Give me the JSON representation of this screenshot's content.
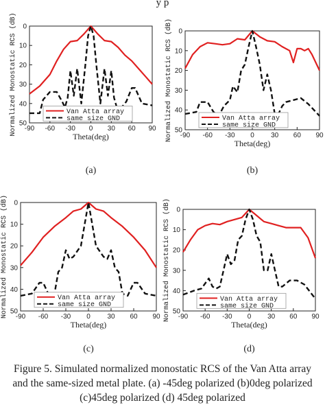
{
  "header_fragment": "y p",
  "caption_lines": [
    "Figure 5. Simulated normalized monostatic RCS of the Van Atta array",
    "and the same-sized metal plate. (a) -45deg polarized (b)0deg polarized",
    "(c)45deg polarized (d) 45deg polarized"
  ],
  "colors": {
    "van_atta": "#e02020",
    "gnd": "#111111"
  },
  "chart_data": [
    {
      "type": "line",
      "sublabel": "(a)",
      "xlabel": "Theta(deg)",
      "ylabel": "Normalized Monostatic RCS (dB)",
      "xlim": [
        -90,
        90
      ],
      "ylim": [
        0,
        50
      ],
      "inverted_y": true,
      "xticks": [
        "-90",
        "-60",
        "-30",
        "0",
        "30",
        "60",
        "90"
      ],
      "yticks": [
        "0",
        "10",
        "20",
        "30",
        "40",
        "50"
      ],
      "legend_position": "bottom-left",
      "series": [
        {
          "name": "Van Atta array",
          "style": "solid",
          "x": [
            -90,
            -75,
            -60,
            -50,
            -40,
            -30,
            -20,
            -10,
            0,
            10,
            20,
            30,
            40,
            50,
            60,
            70,
            80,
            90
          ],
          "y": [
            35,
            31,
            25,
            18,
            12,
            8,
            7.5,
            4,
            0,
            4,
            7.5,
            8,
            11,
            15,
            18,
            22,
            26,
            30
          ]
        },
        {
          "name": "same size GND",
          "style": "dashed",
          "x": [
            -90,
            -75,
            -70,
            -60,
            -50,
            -42,
            -38,
            -34,
            -30,
            -25,
            -20,
            -14,
            -8,
            -4,
            0,
            4,
            8,
            14,
            20,
            25,
            30,
            34,
            38,
            45,
            52,
            60,
            65,
            75,
            90
          ],
          "y": [
            45,
            45,
            38,
            34,
            34,
            39,
            42,
            37,
            23,
            36,
            22,
            40,
            20,
            5,
            0,
            5,
            20,
            40,
            22,
            36,
            23,
            37,
            42,
            42,
            39,
            32,
            32,
            40,
            41
          ]
        }
      ]
    },
    {
      "type": "line",
      "sublabel": "(b)",
      "xlabel": "Theta(deg)",
      "ylabel": "Normalized Monostatic RCS (dB)",
      "xlim": [
        -90,
        90
      ],
      "ylim": [
        0,
        50
      ],
      "inverted_y": true,
      "xticks": [
        "-90",
        "-60",
        "-30",
        "0",
        "30",
        "60",
        "90"
      ],
      "yticks": [
        "0",
        "10",
        "20",
        "30",
        "40",
        "50"
      ],
      "legend_position": "bottom-left",
      "series": [
        {
          "name": "Van Atta array",
          "style": "solid",
          "x": [
            -90,
            -80,
            -70,
            -60,
            -50,
            -40,
            -30,
            -20,
            -10,
            0,
            10,
            20,
            30,
            40,
            50,
            55,
            60,
            65,
            70,
            75,
            80,
            90
          ],
          "y": [
            19,
            12,
            8,
            6,
            6.5,
            7,
            6.5,
            4,
            4.5,
            0,
            3,
            5,
            5.5,
            8,
            10,
            16,
            9,
            9,
            10,
            9,
            12,
            20
          ]
        },
        {
          "name": "same size GND",
          "style": "dashed",
          "x": [
            -90,
            -75,
            -70,
            -60,
            -52,
            -45,
            -38,
            -30,
            -26,
            -20,
            -15,
            -10,
            -5,
            0,
            5,
            10,
            15,
            20,
            25,
            30,
            35,
            40,
            45,
            55,
            65,
            75,
            90
          ],
          "y": [
            42,
            41,
            36,
            36,
            41,
            43,
            38,
            35,
            28,
            31,
            20,
            17,
            8,
            0,
            8,
            17,
            30,
            22,
            30,
            42,
            42,
            38,
            36,
            35,
            34,
            37,
            43
          ]
        }
      ]
    },
    {
      "type": "line",
      "sublabel": "(c)",
      "xlabel": "Theta(deg)",
      "ylabel": "Normalized Monostatic RCS (dB)",
      "xlim": [
        -90,
        90
      ],
      "ylim": [
        0,
        50
      ],
      "inverted_y": true,
      "xticks": [
        "-90",
        "-60",
        "-30",
        "0",
        "30",
        "60",
        "90"
      ],
      "yticks": [
        "0",
        "10",
        "20",
        "30",
        "40",
        "50"
      ],
      "legend_position": "bottom-left",
      "series": [
        {
          "name": "Van Atta array",
          "style": "solid",
          "x": [
            -90,
            -75,
            -60,
            -45,
            -30,
            -20,
            -10,
            0,
            10,
            20,
            30,
            45,
            60,
            75,
            90
          ],
          "y": [
            29,
            23,
            16,
            11,
            7,
            4,
            3,
            0,
            3,
            4,
            7,
            11,
            16,
            22,
            30
          ]
        },
        {
          "name": "same size GND",
          "style": "dashed",
          "x": [
            -90,
            -75,
            -65,
            -60,
            -52,
            -45,
            -40,
            -35,
            -30,
            -25,
            -20,
            -10,
            -5,
            0,
            5,
            10,
            20,
            25,
            30,
            35,
            40,
            45,
            52,
            60,
            65,
            75,
            90
          ],
          "y": [
            43,
            42,
            37,
            37,
            43,
            42,
            32,
            30,
            22,
            26,
            25,
            20,
            10,
            0,
            10,
            20,
            25,
            26,
            22,
            30,
            32,
            42,
            43,
            37,
            37,
            42,
            43
          ]
        }
      ]
    },
    {
      "type": "line",
      "sublabel": "(d)",
      "xlabel": "Theta(deg)",
      "ylabel": "Normalized Monostatic RCS (dB)",
      "xlim": [
        -90,
        90
      ],
      "ylim": [
        0,
        50
      ],
      "inverted_y": true,
      "xticks": [
        "-90",
        "-60",
        "-30",
        "0",
        "30",
        "60",
        "90"
      ],
      "yticks": [
        "0",
        "10",
        "20",
        "30",
        "40",
        "50"
      ],
      "legend_position": "bottom-left",
      "series": [
        {
          "name": "Van Atta array",
          "style": "solid",
          "x": [
            -90,
            -80,
            -70,
            -60,
            -50,
            -40,
            -30,
            -20,
            -10,
            0,
            10,
            20,
            30,
            40,
            50,
            60,
            70,
            80,
            90
          ],
          "y": [
            21,
            15,
            10,
            8,
            7,
            7.5,
            6,
            5,
            4,
            0,
            3,
            6,
            7,
            8,
            9,
            9,
            9,
            14,
            24
          ]
        },
        {
          "name": "same size GND",
          "style": "dashed",
          "x": [
            -90,
            -75,
            -65,
            -55,
            -50,
            -45,
            -40,
            -35,
            -30,
            -25,
            -20,
            -15,
            -10,
            -5,
            0,
            5,
            10,
            15,
            20,
            25,
            30,
            35,
            40,
            45,
            55,
            65,
            75,
            90
          ],
          "y": [
            42,
            40,
            39,
            34,
            38,
            39,
            38,
            30,
            22,
            27,
            25,
            15,
            13,
            5,
            0,
            5,
            13,
            16,
            30,
            30,
            22,
            30,
            38,
            38,
            35,
            35,
            37,
            44
          ]
        }
      ]
    }
  ]
}
